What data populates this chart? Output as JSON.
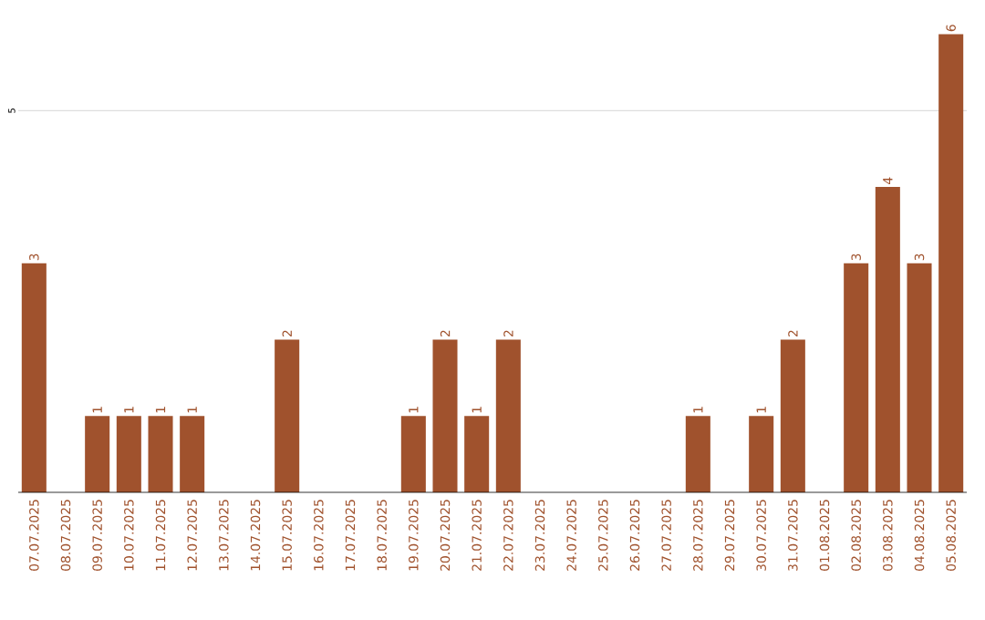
{
  "chart_data": {
    "type": "bar",
    "categories": [
      "07.07.2025",
      "08.07.2025",
      "09.07.2025",
      "10.07.2025",
      "11.07.2025",
      "12.07.2025",
      "13.07.2025",
      "14.07.2025",
      "15.07.2025",
      "16.07.2025",
      "17.07.2025",
      "18.07.2025",
      "19.07.2025",
      "20.07.2025",
      "21.07.2025",
      "22.07.2025",
      "23.07.2025",
      "24.07.2025",
      "25.07.2025",
      "26.07.2025",
      "27.07.2025",
      "28.07.2025",
      "29.07.2025",
      "30.07.2025",
      "31.07.2025",
      "01.08.2025",
      "02.08.2025",
      "03.08.2025",
      "04.08.2025",
      "05.08.2025"
    ],
    "values": [
      3,
      0,
      1,
      1,
      1,
      1,
      0,
      0,
      2,
      0,
      0,
      0,
      1,
      2,
      1,
      2,
      0,
      0,
      0,
      0,
      0,
      1,
      0,
      1,
      2,
      0,
      3,
      4,
      3,
      6
    ],
    "value_labels": [
      "3",
      null,
      "1",
      "1",
      "1",
      "1",
      null,
      null,
      "2",
      null,
      null,
      null,
      "1",
      "2",
      "1",
      "2",
      null,
      null,
      null,
      null,
      null,
      "1",
      null,
      "1",
      "2",
      null,
      "3",
      "4",
      "3",
      "6"
    ],
    "color": "#a0522d",
    "ref_lines": [
      {
        "axis": "y",
        "value": 5,
        "label": "5",
        "color": "#cccccc"
      }
    ]
  }
}
